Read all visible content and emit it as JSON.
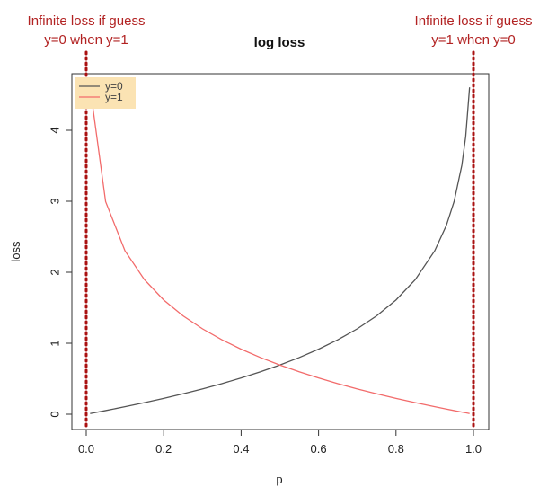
{
  "chart_data": {
    "type": "line",
    "title": "log loss",
    "xlabel": "p",
    "ylabel": "loss",
    "xlim": [
      0,
      1
    ],
    "ylim": [
      0,
      4.6
    ],
    "x_ticks": [
      0.0,
      0.2,
      0.4,
      0.6,
      0.8,
      1.0
    ],
    "x_tick_labels": [
      "0.0",
      "0.2",
      "0.4",
      "0.6",
      "0.8",
      "1.0"
    ],
    "y_ticks": [
      0,
      1,
      2,
      3,
      4
    ],
    "y_tick_labels": [
      "0",
      "1",
      "2",
      "3",
      "4"
    ],
    "x": [
      0.01,
      0.05,
      0.1,
      0.15,
      0.2,
      0.25,
      0.3,
      0.35,
      0.4,
      0.45,
      0.5,
      0.55,
      0.6,
      0.65,
      0.7,
      0.75,
      0.8,
      0.85,
      0.9,
      0.93,
      0.95,
      0.97,
      0.98,
      0.99
    ],
    "series": [
      {
        "name": "y=0",
        "color": "#555555",
        "values": [
          0.01,
          0.0513,
          0.1054,
          0.1625,
          0.2231,
          0.2877,
          0.3567,
          0.4308,
          0.5108,
          0.5978,
          0.6931,
          0.7985,
          0.9163,
          1.0498,
          1.204,
          1.3863,
          1.6094,
          1.8971,
          2.3026,
          2.6593,
          2.9957,
          3.5066,
          3.912,
          4.6052
        ]
      },
      {
        "name": "y=1",
        "color": "#f26b6b",
        "values": [
          4.6052,
          2.9957,
          2.3026,
          1.8971,
          1.6094,
          1.3863,
          1.204,
          1.0498,
          0.9163,
          0.7985,
          0.6931,
          0.5978,
          0.5108,
          0.4308,
          0.3567,
          0.2877,
          0.2231,
          0.1625,
          0.1054,
          0.0726,
          0.0513,
          0.0305,
          0.0202,
          0.01
        ]
      }
    ],
    "vlines": [
      {
        "x": 0.0,
        "color": "#aa1111"
      },
      {
        "x": 1.0,
        "color": "#aa1111"
      }
    ],
    "legend_placement": "top-left",
    "legend_bg": "#fbe3b3",
    "grid": false,
    "annotations": {
      "left_line1": "Infinite loss if guess",
      "left_line2": "y=0 when y=1",
      "right_line1": "Infinite loss if guess",
      "right_line2": "y=1 when y=0"
    }
  }
}
